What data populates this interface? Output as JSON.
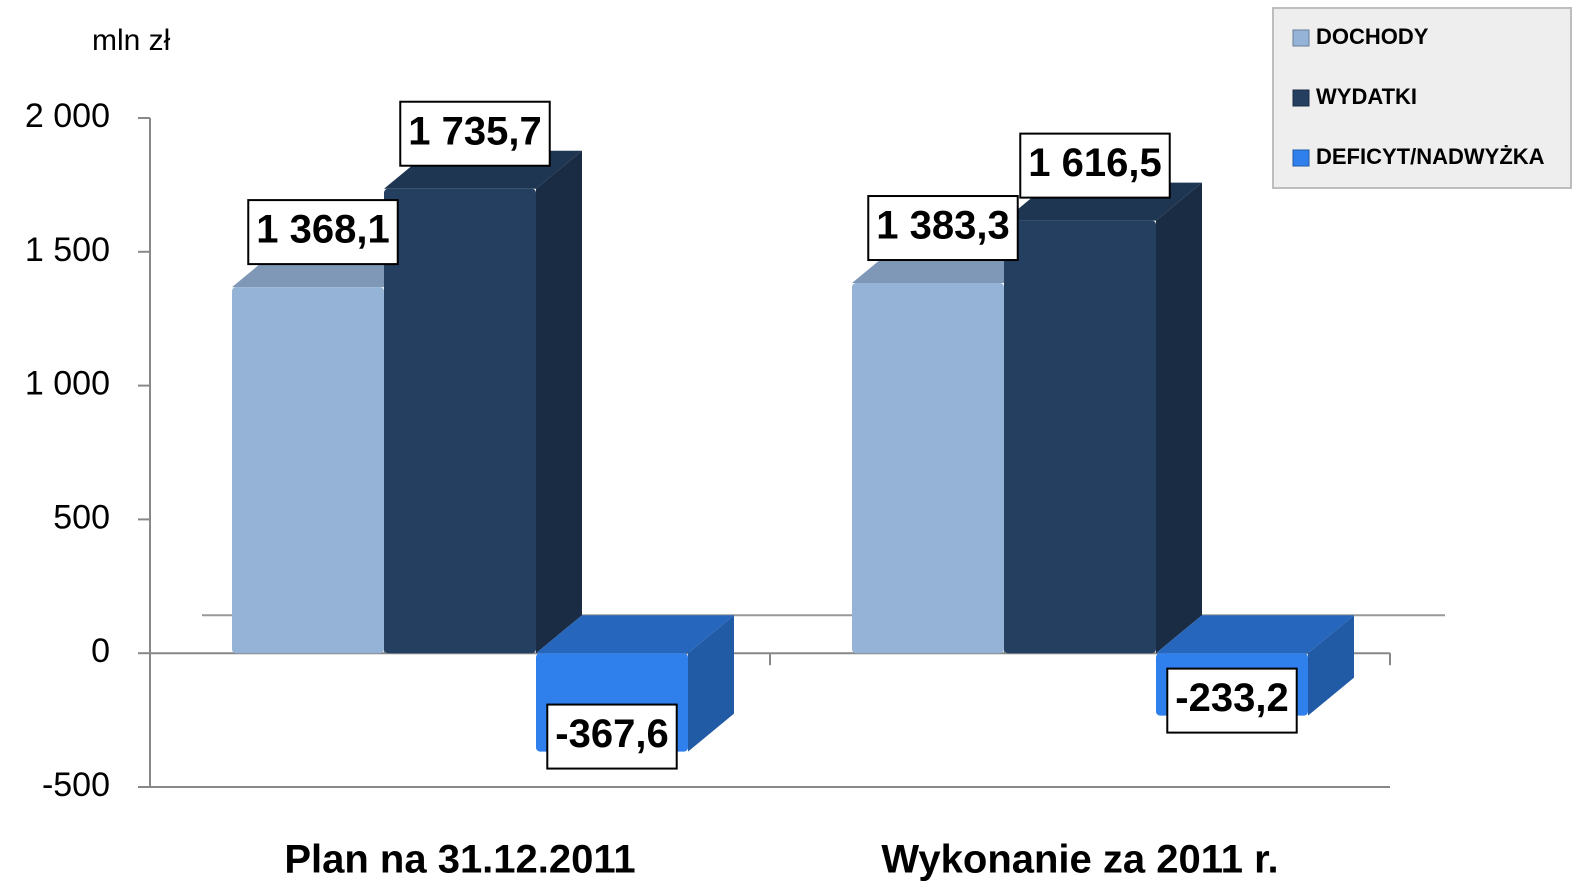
{
  "chart_data": {
    "type": "bar3d",
    "y_axis_label": "mln zł",
    "categories": [
      "Plan na 31.12.2011",
      "Wykonanie za 2011 r."
    ],
    "series": [
      {
        "name": "DOCHODY",
        "color": "#95b3d7",
        "values": [
          1368.1,
          1383.3
        ],
        "value_labels": [
          "1 368,1",
          "1 383,3"
        ]
      },
      {
        "name": "WYDATKI",
        "color": "#243f60",
        "values": [
          1735.7,
          1616.5
        ],
        "value_labels": [
          "1 735,7",
          "1 616,5"
        ]
      },
      {
        "name": "DEFICYT/NADWYŻKA",
        "color": "#2f80ec",
        "values": [
          -367.6,
          -233.2
        ],
        "value_labels": [
          "-367,6",
          "-233,2"
        ]
      }
    ],
    "ylim": [
      -500,
      2000
    ],
    "yticks": [
      -500,
      0,
      500,
      {
        "value": 1000,
        "label": "1 000"
      },
      {
        "value": 1500,
        "label": "1 500"
      },
      {
        "value": 2000,
        "label": "2 000"
      }
    ],
    "grid": false,
    "legend": "top-right"
  }
}
